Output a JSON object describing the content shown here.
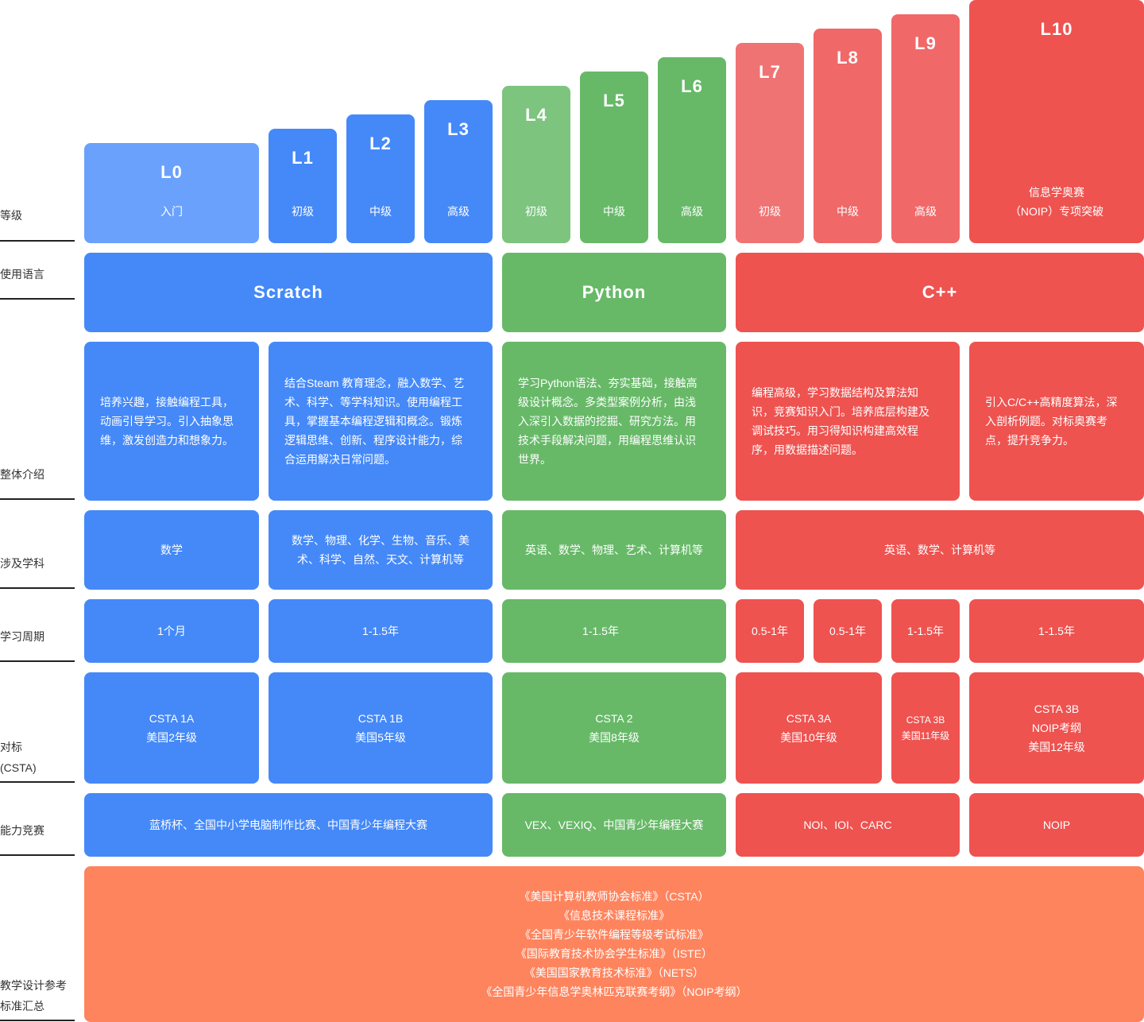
{
  "row_labels": {
    "level": "等级",
    "language": "使用语言",
    "intro": "整体介绍",
    "subjects": "涉及学科",
    "period": "学习周期",
    "benchmark_line1": "对标",
    "benchmark_line2": "(CSTA)",
    "competition": "能力竞赛",
    "standards_line1": "教学设计参考",
    "standards_line2": "标准汇总"
  },
  "levels": [
    {
      "code": "L0",
      "stage": "入门"
    },
    {
      "code": "L1",
      "stage": "初级"
    },
    {
      "code": "L2",
      "stage": "中级"
    },
    {
      "code": "L3",
      "stage": "高级"
    },
    {
      "code": "L4",
      "stage": "初级"
    },
    {
      "code": "L5",
      "stage": "中级"
    },
    {
      "code": "L6",
      "stage": "高级"
    },
    {
      "code": "L7",
      "stage": "初级"
    },
    {
      "code": "L8",
      "stage": "中级"
    },
    {
      "code": "L9",
      "stage": "高级"
    },
    {
      "code": "L10",
      "stage_line1": "信息学奥赛",
      "stage_line2": "（NOIP）专项突破"
    }
  ],
  "languages": [
    "Scratch",
    "Python",
    "C++"
  ],
  "intros": [
    [
      "培养兴趣，接触编程工具，",
      "动画引导学习。引入抽象思",
      "维，激发创造力和想象力。"
    ],
    [
      "结合Steam 教育理念，融入数学、艺",
      "术、科学、等学科知识。使用编程工",
      "具，掌握基本编程逻辑和概念。锻炼",
      "逻辑思维、创新、程序设计能力，综",
      "合运用解决日常问题。"
    ],
    [
      "学习Python语法、夯实基础，接触高",
      "级设计概念。多类型案例分析，由浅",
      "入深引入数据的挖掘、研究方法。用",
      "技术手段解决问题，用编程思维认识",
      "世界。"
    ],
    [
      "编程高级，学习数据结构及算法知",
      "识，竞赛知识入门。培养底层构建及",
      "调试技巧。用习得知识构建高效程",
      "序，用数据描述问题。"
    ],
    [
      "引入C/C++高精度算法，深",
      "入剖析例题。对标奥赛考",
      "点，提升竞争力。"
    ]
  ],
  "subjects": [
    [
      "数学"
    ],
    [
      "数学、物理、化学、生物、音乐、美",
      "术、科学、自然、天文、计算机等"
    ],
    [
      "英语、数学、物理、艺术、计算机等"
    ],
    [
      "英语、数学、计算机等"
    ]
  ],
  "periods": [
    "1个月",
    "1-1.5年",
    "1-1.5年",
    "0.5-1年",
    "0.5-1年",
    "1-1.5年",
    "1-1.5年"
  ],
  "benchmarks": [
    [
      "CSTA 1A",
      "美国2年级"
    ],
    [
      "CSTA 1B",
      "美国5年级"
    ],
    [
      "CSTA 2",
      "美国8年级"
    ],
    [
      "CSTA 3A",
      "美国10年级"
    ],
    [
      "CSTA 3B",
      "美国11年级"
    ],
    [
      "CSTA 3B",
      "NOIP考纲",
      "美国12年级"
    ]
  ],
  "competitions": [
    "蓝桥杯、全国中小学电脑制作比赛、中国青少年编程大赛",
    "VEX、VEXIQ、中国青少年编程大赛",
    "NOI、IOI、CARC",
    "NOIP"
  ],
  "standards": [
    "《美国计算机教师协会标准》（CSTA）",
    "《信息技术课程标准》",
    "《全国青少年软件编程等级考试标准》",
    "《国际教育技术协会学生标准》（ISTE）",
    "《美国国家教育技术标准》（NETS）",
    "《全国青少年信息学奥林匹克联赛考纲》（NOIP考纲）"
  ],
  "colors": {
    "blue_light": "#6aa1fd",
    "blue": "#4589f8",
    "green_light": "#7dc47f",
    "green": "#67b968",
    "red_light": "#f07373",
    "red": "#ee5350",
    "orange": "#fe845e"
  }
}
